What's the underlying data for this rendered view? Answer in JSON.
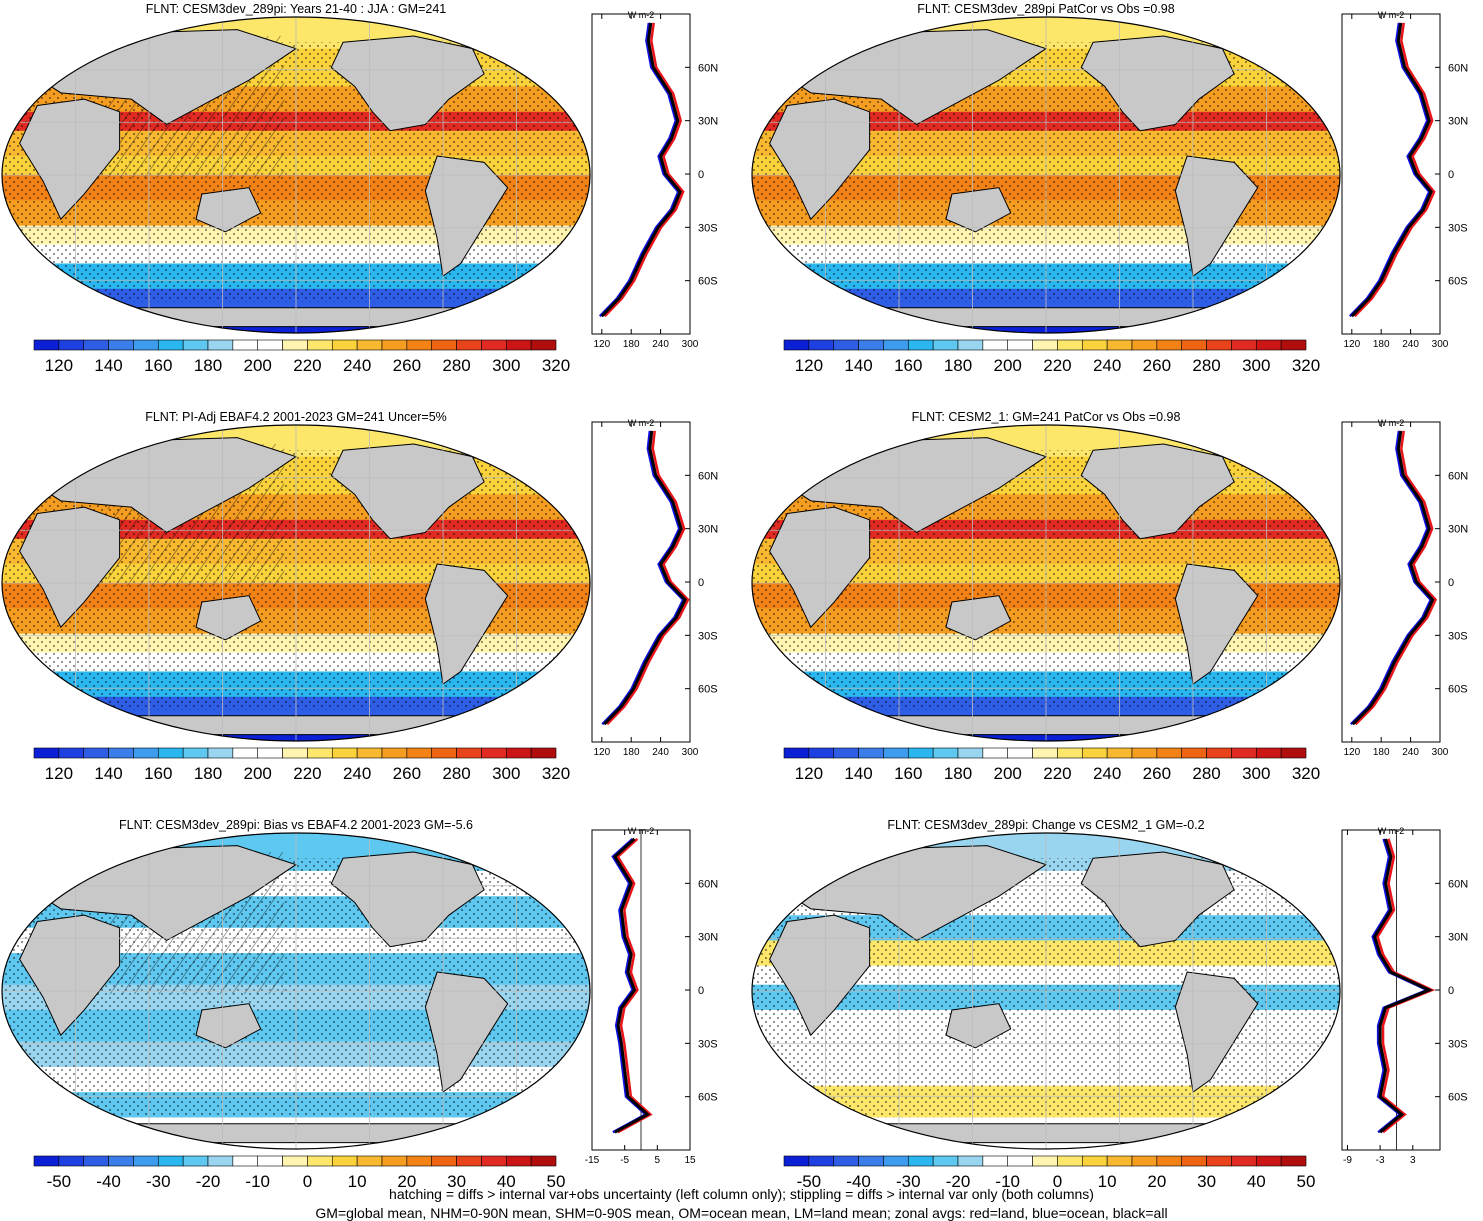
{
  "panels": [
    {
      "title": "FLNT: CESM3dev_289pi: Years 21-40 : JJA : GM=241",
      "map": "field",
      "cbar": "abs",
      "zprofile": "abs"
    },
    {
      "title": "FLNT: CESM3dev_289pi PatCor vs Obs =0.98",
      "map": "field",
      "cbar": "abs",
      "zprofile": "abs"
    },
    {
      "title": "FLNT: PI-Adj EBAF4.2 2001-2023 GM=241 Uncer=5%",
      "map": "field",
      "cbar": "abs",
      "zprofile": "abs"
    },
    {
      "title": "FLNT: CESM2_1: GM=241 PatCor vs Obs =0.98",
      "map": "field",
      "cbar": "abs",
      "zprofile": "abs"
    },
    {
      "title": "FLNT: CESM3dev_289pi: Bias vs EBAF4.2 2001-2023 GM=-5.6",
      "map": "bias",
      "cbar": "diff",
      "zprofile": "bias"
    },
    {
      "title": "FLNT: CESM3dev_289pi: Change vs CESM2_1 GM=-0.2",
      "map": "change",
      "cbar": "diff",
      "zprofile": "change"
    }
  ],
  "colorbars": {
    "abs": {
      "labels": [
        "120",
        "140",
        "160",
        "180",
        "200",
        "220",
        "240",
        "260",
        "280",
        "300",
        "320"
      ],
      "colors": [
        "#0a1fd6",
        "#1e40e0",
        "#2f5ee6",
        "#3b7ee9",
        "#3d9cee",
        "#2ab7f0",
        "#5ec8f0",
        "#99d5ef",
        "#ffffff",
        "#ffffff",
        "#fff5b0",
        "#fde76a",
        "#fad23c",
        "#f8b830",
        "#f59d20",
        "#f28116",
        "#ee6413",
        "#e8431a",
        "#e02a22",
        "#cc1616",
        "#b00d0d"
      ]
    },
    "diff": {
      "labels": [
        "-50",
        "-40",
        "-30",
        "-20",
        "-10",
        "0",
        "10",
        "20",
        "30",
        "40",
        "50"
      ],
      "colors": [
        "#0a1fd6",
        "#1e40e0",
        "#2f5ee6",
        "#3b7ee9",
        "#3d9cee",
        "#2ab7f0",
        "#5ec8f0",
        "#99d5ef",
        "#ffffff",
        "#ffffff",
        "#fff5b0",
        "#fde76a",
        "#fad23c",
        "#f8b830",
        "#f59d20",
        "#f28116",
        "#ee6413",
        "#e8431a",
        "#e02a22",
        "#cc1616",
        "#b00d0d"
      ]
    }
  },
  "zonal_axes": {
    "abs": {
      "xlim": [
        100,
        300
      ],
      "ticks": [
        "120",
        "180",
        "240",
        "300"
      ],
      "tick_values": [
        120,
        180,
        240,
        300
      ],
      "unit": "W m-2"
    },
    "bias": {
      "xlim": [
        -15,
        15
      ],
      "ticks": [
        "-15",
        "-5",
        "5",
        "15"
      ],
      "tick_values": [
        -15,
        -5,
        5,
        15
      ],
      "unit": "W m-2"
    },
    "change": {
      "xlim": [
        -10,
        8
      ],
      "ticks": [
        "-9",
        "-3",
        "3"
      ],
      "tick_values": [
        -9,
        -3,
        3
      ],
      "unit": "W m-2"
    },
    "lat_labels": [
      "60N",
      "30N",
      "0",
      "30S",
      "60S"
    ],
    "lat_values": [
      60,
      30,
      0,
      -30,
      -60
    ]
  },
  "series_colors": {
    "land": "#e8141a",
    "ocean": "#1010e0",
    "all": "#000000"
  },
  "land_color": "#c8c8c8",
  "footer": {
    "line1": "hatching = diffs > internal var+obs uncertainty (left column only); stippling = diffs > internal var only (both columns)",
    "line2": "GM=global mean, NHM=0-90N mean, SHM=0-90S mean, OM=ocean mean, LM=land mean; zonal avgs: red=land, blue=ocean, black=all"
  },
  "chart_data": [
    {
      "type": "heatmap",
      "title": "FLNT: CESM3dev_289pi: Years 21-40 : JJA : GM=241",
      "colorbar_range": [
        120,
        320
      ],
      "zonal_mean": {
        "lat": [
          85,
          75,
          60,
          45,
          30,
          20,
          10,
          0,
          -10,
          -20,
          -30,
          -45,
          -60,
          -70,
          -80
        ],
        "all": [
          220,
          215,
          225,
          260,
          275,
          262,
          240,
          250,
          280,
          265,
          235,
          205,
          180,
          155,
          120
        ]
      }
    },
    {
      "type": "heatmap",
      "title": "FLNT: CESM3dev_289pi PatCor vs Obs =0.98",
      "colorbar_range": [
        120,
        320
      ],
      "zonal_mean": {
        "lat": [
          85,
          75,
          60,
          45,
          30,
          20,
          10,
          0,
          -10,
          -20,
          -30,
          -45,
          -60,
          -70,
          -80
        ],
        "all": [
          220,
          215,
          228,
          262,
          278,
          262,
          238,
          252,
          282,
          266,
          236,
          205,
          180,
          155,
          120
        ]
      }
    },
    {
      "type": "heatmap",
      "title": "FLNT: PI-Adj EBAF4.2 2001-2023 GM=241 Uncer=5%",
      "colorbar_range": [
        120,
        320
      ],
      "zonal_mean": {
        "lat": [
          85,
          75,
          60,
          45,
          30,
          20,
          10,
          0,
          -10,
          -20,
          -30,
          -45,
          -60,
          -70,
          -80
        ],
        "all": [
          222,
          218,
          230,
          265,
          282,
          265,
          240,
          255,
          290,
          272,
          240,
          210,
          185,
          160,
          125
        ]
      }
    },
    {
      "type": "heatmap",
      "title": "FLNT: CESM2_1: GM=241 PatCor vs Obs =0.98",
      "colorbar_range": [
        120,
        320
      ],
      "zonal_mean": {
        "lat": [
          85,
          75,
          60,
          45,
          30,
          20,
          10,
          0,
          -10,
          -20,
          -30,
          -45,
          -60,
          -70,
          -80
        ],
        "all": [
          220,
          215,
          225,
          262,
          278,
          263,
          240,
          252,
          285,
          268,
          238,
          207,
          182,
          158,
          122
        ]
      }
    },
    {
      "type": "heatmap",
      "title": "FLNT: CESM3dev_289pi: Bias vs EBAF4.2 2001-2023 GM=-5.6",
      "colorbar_range": [
        -50,
        50
      ],
      "zonal_mean": {
        "lat": [
          85,
          75,
          60,
          45,
          30,
          20,
          10,
          0,
          -10,
          -20,
          -30,
          -45,
          -60,
          -70,
          -80
        ],
        "all": [
          -2,
          -8,
          -3,
          -6,
          -5,
          -3,
          -4,
          -2,
          -6,
          -7,
          -6,
          -5,
          -4,
          2,
          -8
        ]
      }
    },
    {
      "type": "heatmap",
      "title": "FLNT: CESM3dev_289pi: Change vs CESM2_1 GM=-0.2",
      "colorbar_range": [
        -50,
        50
      ],
      "zonal_mean": {
        "lat": [
          85,
          75,
          60,
          45,
          30,
          20,
          10,
          0,
          -10,
          -20,
          -30,
          -45,
          -60,
          -70,
          -80
        ],
        "all": [
          -2,
          -1,
          -2,
          -1,
          -4,
          -3,
          -1,
          6,
          -2,
          -3,
          -3,
          -2,
          -3,
          1,
          -3
        ]
      }
    }
  ]
}
